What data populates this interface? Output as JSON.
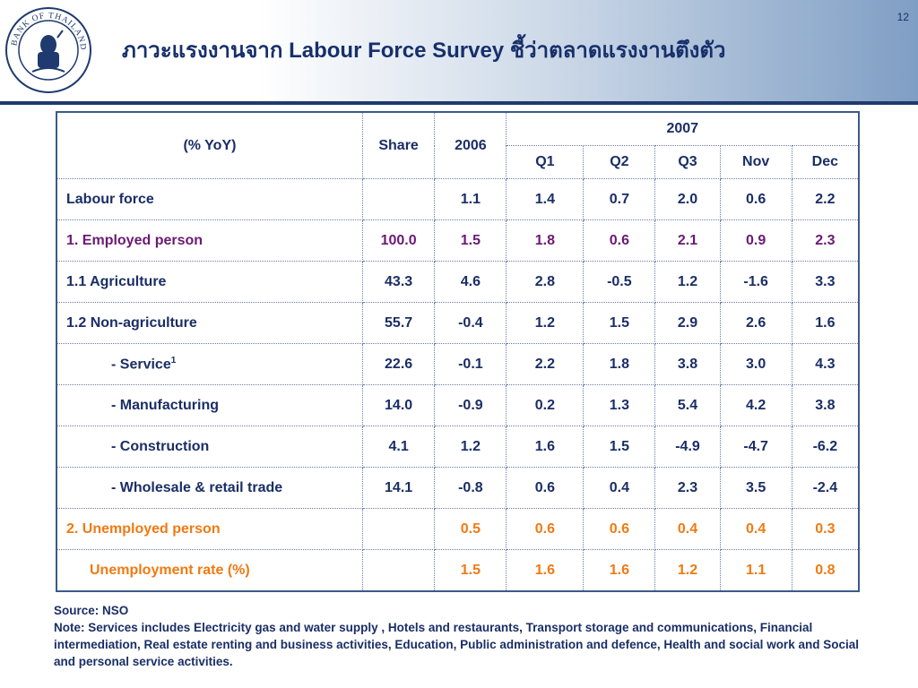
{
  "page_number": "12",
  "title": "ภาวะแรงงานจาก Labour Force Survey ชี้ว่าตลาดแรงงานตึงตัว",
  "logo_text": "BANK OF THAILAND",
  "table": {
    "header": {
      "label": "(% YoY)",
      "share": "Share",
      "y2006": "2006",
      "y2007": "2007",
      "q1": "Q1",
      "q2": "Q2",
      "q3": "Q3",
      "nov": "Nov",
      "dec": "Dec"
    },
    "rows": [
      {
        "label": "Labour force",
        "share": "",
        "y2006": "1.1",
        "q1": "1.4",
        "q2": "0.7",
        "q3": "2.0",
        "nov": "0.6",
        "dec": "2.2"
      },
      {
        "label": "1.  Employed person",
        "share": "100.0",
        "y2006": "1.5",
        "q1": "1.8",
        "q2": "0.6",
        "q3": "2.1",
        "nov": "0.9",
        "dec": "2.3"
      },
      {
        "label": "1.1 Agriculture",
        "share": "43.3",
        "y2006": "4.6",
        "q1": "2.8",
        "q2": "-0.5",
        "q3": "1.2",
        "nov": "-1.6",
        "dec": "3.3"
      },
      {
        "label": "1.2 Non-agriculture",
        "share": "55.7",
        "y2006": "-0.4",
        "q1": "1.2",
        "q2": "1.5",
        "q3": "2.9",
        "nov": "2.6",
        "dec": "1.6"
      },
      {
        "label": "- Service",
        "sup": "1",
        "share": "22.6",
        "y2006": "-0.1",
        "q1": "2.2",
        "q2": "1.8",
        "q3": "3.8",
        "nov": "3.0",
        "dec": "4.3"
      },
      {
        "label": "- Manufacturing",
        "share": "14.0",
        "y2006": "-0.9",
        "q1": "0.2",
        "q2": "1.3",
        "q3": "5.4",
        "nov": "4.2",
        "dec": "3.8"
      },
      {
        "label": "- Construction",
        "share": "4.1",
        "y2006": "1.2",
        "q1": "1.6",
        "q2": "1.5",
        "q3": "-4.9",
        "nov": "-4.7",
        "dec": "-6.2"
      },
      {
        "label": "- Wholesale & retail trade",
        "share": "14.1",
        "y2006": "-0.8",
        "q1": "0.6",
        "q2": "0.4",
        "q3": "2.3",
        "nov": "3.5",
        "dec": "-2.4"
      },
      {
        "label": "2.  Unemployed person",
        "share": "",
        "y2006": "0.5",
        "q1": "0.6",
        "q2": "0.6",
        "q3": "0.4",
        "nov": "0.4",
        "dec": "0.3"
      },
      {
        "label": "Unemployment rate (%)",
        "share": "",
        "y2006": "1.5",
        "q1": "1.6",
        "q2": "1.6",
        "q3": "1.2",
        "nov": "1.1",
        "dec": "0.8"
      }
    ]
  },
  "source": "Source: NSO",
  "note": "Note:   Services includes Electricity gas and water supply , Hotels and restaurants, Transport storage and communications, Financial intermediation, Real estate renting and business activities, Education, Public administration and defence, Health and social work  and Social and personal service activities.",
  "colors": {
    "navy": "#1a2e66",
    "employed": "#6a1a73",
    "unemployed": "#f07a12",
    "header_rule": "#1f3a6e"
  }
}
